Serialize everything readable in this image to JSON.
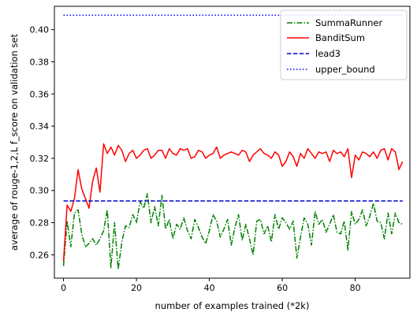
{
  "chart_data": {
    "type": "line",
    "title": "",
    "xlabel": "number of examples trained (*2k)",
    "ylabel": "average of rouge-1,2,L f_score on validation set",
    "xlim": [
      -2.5,
      95
    ],
    "ylim": [
      0.2455,
      0.4145
    ],
    "xticks": [
      0,
      20,
      40,
      60,
      80
    ],
    "yticks": [
      0.26,
      0.28,
      0.3,
      0.32,
      0.34,
      0.36,
      0.38,
      0.4
    ],
    "xtick_labels": [
      "0",
      "20",
      "40",
      "60",
      "80"
    ],
    "ytick_labels": [
      "0.26",
      "0.28",
      "0.30",
      "0.32",
      "0.34",
      "0.36",
      "0.38",
      "0.40"
    ],
    "grid": false,
    "legend_position": "top-right",
    "x": [
      0,
      1,
      2,
      3,
      4,
      5,
      6,
      7,
      8,
      9,
      10,
      11,
      12,
      13,
      14,
      15,
      16,
      17,
      18,
      19,
      20,
      21,
      22,
      23,
      24,
      25,
      26,
      27,
      28,
      29,
      30,
      31,
      32,
      33,
      34,
      35,
      36,
      37,
      38,
      39,
      40,
      41,
      42,
      43,
      44,
      45,
      46,
      47,
      48,
      49,
      50,
      51,
      52,
      53,
      54,
      55,
      56,
      57,
      58,
      59,
      60,
      61,
      62,
      63,
      64,
      65,
      66,
      67,
      68,
      69,
      70,
      71,
      72,
      73,
      74,
      75,
      76,
      77,
      78,
      79,
      80,
      81,
      82,
      83,
      84,
      85,
      86,
      87,
      88,
      89,
      90,
      91,
      92,
      93
    ],
    "series": [
      {
        "name": "SummaRunner",
        "color": "#008000",
        "style": "dashdot",
        "values": [
          0.253,
          0.281,
          0.265,
          0.286,
          0.288,
          0.273,
          0.265,
          0.267,
          0.27,
          0.266,
          0.27,
          0.275,
          0.288,
          0.252,
          0.28,
          0.251,
          0.268,
          0.278,
          0.277,
          0.285,
          0.28,
          0.293,
          0.289,
          0.298,
          0.28,
          0.29,
          0.278,
          0.297,
          0.276,
          0.282,
          0.27,
          0.279,
          0.276,
          0.283,
          0.275,
          0.27,
          0.282,
          0.277,
          0.271,
          0.267,
          0.275,
          0.285,
          0.281,
          0.271,
          0.276,
          0.282,
          0.266,
          0.277,
          0.285,
          0.269,
          0.279,
          0.27,
          0.26,
          0.281,
          0.282,
          0.273,
          0.278,
          0.268,
          0.285,
          0.276,
          0.283,
          0.28,
          0.276,
          0.281,
          0.258,
          0.271,
          0.283,
          0.279,
          0.266,
          0.287,
          0.279,
          0.282,
          0.274,
          0.279,
          0.285,
          0.274,
          0.273,
          0.281,
          0.263,
          0.287,
          0.279,
          0.282,
          0.288,
          0.278,
          0.284,
          0.292,
          0.281,
          0.28,
          0.27,
          0.286,
          0.273,
          0.286,
          0.28,
          0.279
        ]
      },
      {
        "name": "BanditSum",
        "color": "#ff0000",
        "style": "solid",
        "values": [
          0.256,
          0.291,
          0.287,
          0.295,
          0.313,
          0.301,
          0.295,
          0.289,
          0.306,
          0.314,
          0.299,
          0.329,
          0.323,
          0.327,
          0.322,
          0.328,
          0.325,
          0.318,
          0.323,
          0.325,
          0.32,
          0.322,
          0.325,
          0.326,
          0.32,
          0.322,
          0.325,
          0.325,
          0.32,
          0.326,
          0.323,
          0.322,
          0.326,
          0.325,
          0.326,
          0.32,
          0.321,
          0.325,
          0.324,
          0.32,
          0.322,
          0.323,
          0.327,
          0.32,
          0.322,
          0.323,
          0.324,
          0.323,
          0.322,
          0.325,
          0.324,
          0.318,
          0.322,
          0.324,
          0.326,
          0.323,
          0.322,
          0.32,
          0.324,
          0.322,
          0.315,
          0.318,
          0.324,
          0.321,
          0.315,
          0.323,
          0.32,
          0.326,
          0.323,
          0.32,
          0.324,
          0.323,
          0.324,
          0.318,
          0.325,
          0.323,
          0.324,
          0.321,
          0.326,
          0.308,
          0.322,
          0.319,
          0.324,
          0.323,
          0.321,
          0.324,
          0.32,
          0.325,
          0.326,
          0.319,
          0.326,
          0.324,
          0.313,
          0.318
        ]
      },
      {
        "name": "lead3",
        "color": "#0000cc",
        "style": "dashed",
        "values": [
          0.2935,
          0.2935,
          0.2935,
          0.2935,
          0.2935,
          0.2935,
          0.2935,
          0.2935,
          0.2935,
          0.2935,
          0.2935,
          0.2935,
          0.2935,
          0.2935,
          0.2935,
          0.2935,
          0.2935,
          0.2935,
          0.2935,
          0.2935,
          0.2935,
          0.2935,
          0.2935,
          0.2935,
          0.2935,
          0.2935,
          0.2935,
          0.2935,
          0.2935,
          0.2935,
          0.2935,
          0.2935,
          0.2935,
          0.2935,
          0.2935,
          0.2935,
          0.2935,
          0.2935,
          0.2935,
          0.2935,
          0.2935,
          0.2935,
          0.2935,
          0.2935,
          0.2935,
          0.2935,
          0.2935,
          0.2935,
          0.2935,
          0.2935,
          0.2935,
          0.2935,
          0.2935,
          0.2935,
          0.2935,
          0.2935,
          0.2935,
          0.2935,
          0.2935,
          0.2935,
          0.2935,
          0.2935,
          0.2935,
          0.2935,
          0.2935,
          0.2935,
          0.2935,
          0.2935,
          0.2935,
          0.2935,
          0.2935,
          0.2935,
          0.2935,
          0.2935,
          0.2935,
          0.2935,
          0.2935,
          0.2935,
          0.2935,
          0.2935,
          0.2935,
          0.2935,
          0.2935,
          0.2935,
          0.2935,
          0.2935,
          0.2935,
          0.2935,
          0.2935,
          0.2935,
          0.2935,
          0.2935,
          0.2935,
          0.2935
        ]
      },
      {
        "name": "upper_bound",
        "color": "#0000ff",
        "style": "dotted",
        "values": [
          0.409,
          0.409,
          0.409,
          0.409,
          0.409,
          0.409,
          0.409,
          0.409,
          0.409,
          0.409,
          0.409,
          0.409,
          0.409,
          0.409,
          0.409,
          0.409,
          0.409,
          0.409,
          0.409,
          0.409,
          0.409,
          0.409,
          0.409,
          0.409,
          0.409,
          0.409,
          0.409,
          0.409,
          0.409,
          0.409,
          0.409,
          0.409,
          0.409,
          0.409,
          0.409,
          0.409,
          0.409,
          0.409,
          0.409,
          0.409,
          0.409,
          0.409,
          0.409,
          0.409,
          0.409,
          0.409,
          0.409,
          0.409,
          0.409,
          0.409,
          0.409,
          0.409,
          0.409,
          0.409,
          0.409,
          0.409,
          0.409,
          0.409,
          0.409,
          0.409,
          0.409,
          0.409,
          0.409,
          0.409,
          0.409,
          0.409,
          0.409,
          0.409,
          0.409,
          0.409,
          0.409,
          0.409,
          0.409,
          0.409,
          0.409,
          0.409,
          0.409,
          0.409,
          0.409,
          0.409,
          0.409,
          0.409,
          0.409,
          0.409,
          0.409,
          0.409,
          0.409,
          0.409,
          0.409,
          0.409,
          0.409,
          0.409,
          0.409,
          0.409
        ]
      }
    ]
  }
}
